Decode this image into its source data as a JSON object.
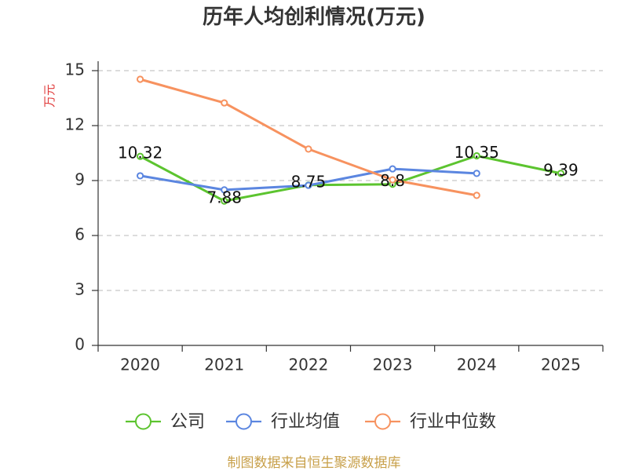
{
  "chart_data": {
    "type": "line",
    "title": "历年人均创利情况(万元)",
    "xlabel": "",
    "ylabel": "万元",
    "categories": [
      "2020",
      "2021",
      "2022",
      "2023",
      "2024",
      "2025"
    ],
    "ylim": [
      0,
      15
    ],
    "yticks": [
      0,
      3,
      6,
      9,
      12,
      15
    ],
    "grid": true,
    "legend_position": "bottom",
    "series": [
      {
        "name": "公司",
        "color": "#5cc42f",
        "values": [
          10.32,
          7.88,
          8.75,
          8.8,
          10.35,
          9.39
        ],
        "show_data_labels": true
      },
      {
        "name": "行业均值",
        "color": "#5b86e0",
        "values": [
          9.26,
          8.49,
          8.74,
          9.64,
          9.39,
          null
        ],
        "show_data_labels": false
      },
      {
        "name": "行业中位数",
        "color": "#f7925f",
        "values": [
          14.53,
          13.24,
          10.72,
          9.04,
          8.19,
          null
        ],
        "show_data_labels": false
      }
    ]
  },
  "colors": {
    "ylabel": "#e03a3a",
    "footer": "#c8a04a",
    "axis": "#333333",
    "grid": "#c8c8c8",
    "text": "#333333",
    "data_label": "#111111"
  },
  "footer": {
    "source": "制图数据来自恒生聚源数据库"
  }
}
